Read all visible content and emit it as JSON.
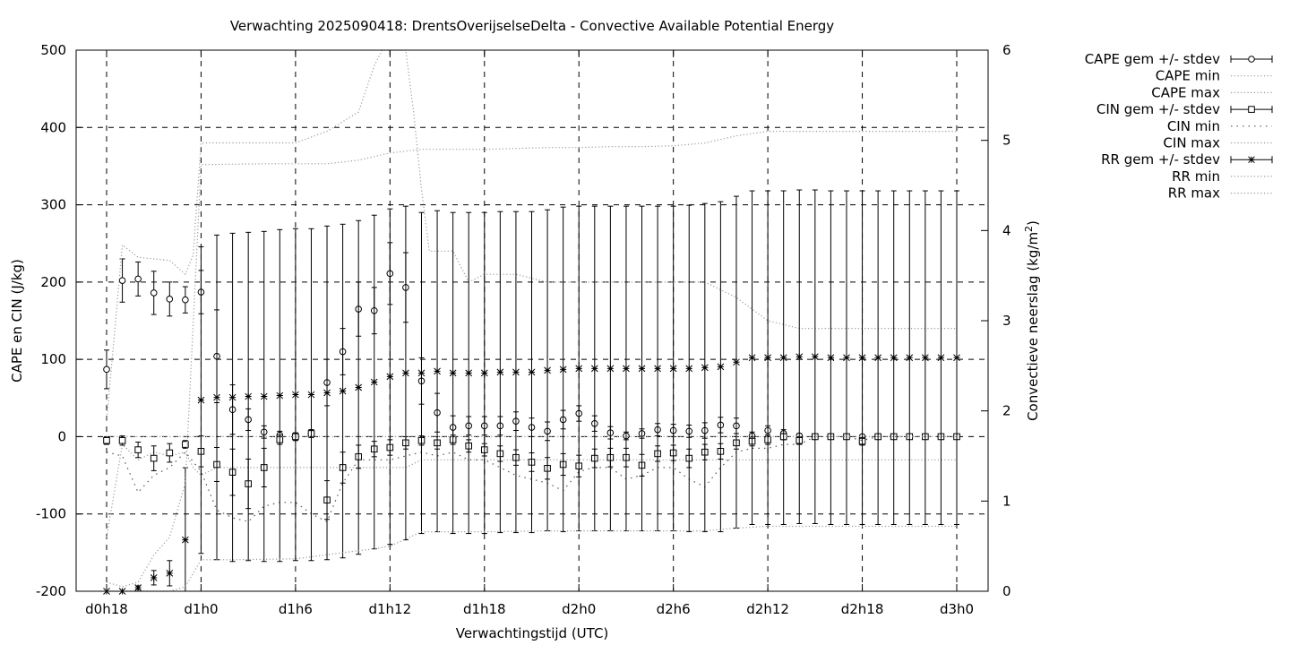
{
  "chart_data": {
    "type": "line",
    "title": "Verwachting 2025090418: DrentsOverijselseDelta - Convective Available Potential Energy",
    "xlabel": "Verwachtingstijd (UTC)",
    "ylabel": "CAPE en CIN (J/kg)",
    "y2label": "Convectieve neerslag (kg/m",
    "y2label_sup": "2",
    "y2label_end": ")",
    "x_unit": "forecast hours after 2025090418",
    "xlim": [
      0,
      54
    ],
    "ylim": [
      -200,
      500
    ],
    "y2lim": [
      0,
      6
    ],
    "grid": true,
    "legend_position": "outside-right",
    "x_ticks": [
      {
        "x": 0,
        "label": "d0h18"
      },
      {
        "x": 6,
        "label": "d1h0"
      },
      {
        "x": 12,
        "label": "d1h6"
      },
      {
        "x": 18,
        "label": "d1h12"
      },
      {
        "x": 24,
        "label": "d1h18"
      },
      {
        "x": 30,
        "label": "d2h0"
      },
      {
        "x": 36,
        "label": "d2h6"
      },
      {
        "x": 42,
        "label": "d2h12"
      },
      {
        "x": 48,
        "label": "d2h18"
      },
      {
        "x": 54,
        "label": "d3h0"
      }
    ],
    "y_ticks": [
      {
        "v": 500,
        "label": "500"
      },
      {
        "v": 400,
        "label": "400"
      },
      {
        "v": 300,
        "label": "300"
      },
      {
        "v": 200,
        "label": "200"
      },
      {
        "v": 100,
        "label": "100"
      },
      {
        "v": 0,
        "label": "0"
      },
      {
        "v": -100,
        "label": "-100"
      },
      {
        "v": -200,
        "label": "-200"
      }
    ],
    "y2_ticks": [
      {
        "v": 6,
        "label": "6"
      },
      {
        "v": 5,
        "label": "5"
      },
      {
        "v": 4,
        "label": "4"
      },
      {
        "v": 3,
        "label": "3"
      },
      {
        "v": 2,
        "label": "2"
      },
      {
        "v": 1,
        "label": "1"
      },
      {
        "v": 0,
        "label": "0"
      }
    ],
    "legend": [
      {
        "label": "CAPE gem +/- stdev",
        "style": "errbar",
        "marker": "circle"
      },
      {
        "label": "CAPE min",
        "style": "dotted"
      },
      {
        "label": "CAPE max",
        "style": "dotted"
      },
      {
        "label": "CIN gem +/- stdev",
        "style": "errbar",
        "marker": "square"
      },
      {
        "label": "CIN min",
        "style": "dotted-sparse"
      },
      {
        "label": "CIN max",
        "style": "dotted"
      },
      {
        "label": "RR gem +/- stdev",
        "style": "errbar",
        "marker": "star"
      },
      {
        "label": "RR min",
        "style": "dotted"
      },
      {
        "label": "RR max",
        "style": "dotted"
      }
    ],
    "series": [
      {
        "name": "CAPE gem +/- stdev",
        "axis": "y",
        "marker": "circle",
        "x": [
          0,
          1,
          2,
          3,
          4,
          5,
          6,
          7,
          8,
          9,
          10,
          11,
          12,
          13,
          14,
          15,
          16,
          17,
          18,
          19,
          20,
          21,
          22,
          23,
          24,
          25,
          26,
          27,
          28,
          29,
          30,
          31,
          32,
          33,
          34,
          35,
          36,
          37,
          38,
          39,
          40,
          41,
          42,
          43,
          44,
          45,
          46,
          47,
          48,
          49,
          50,
          51,
          52,
          53,
          54
        ],
        "values": [
          87,
          202,
          204,
          186,
          178,
          177,
          187,
          104,
          35,
          22,
          6,
          2,
          0,
          4,
          70,
          110,
          165,
          163,
          211,
          193,
          72,
          31,
          12,
          14,
          14,
          14,
          20,
          12,
          7,
          22,
          30,
          17,
          5,
          1,
          4,
          9,
          8,
          7,
          8,
          15,
          14,
          1,
          8,
          4,
          1,
          0,
          0,
          0,
          0,
          0,
          0,
          0,
          0,
          0,
          0
        ],
        "err": [
          25,
          28,
          22,
          28,
          22,
          17,
          28,
          60,
          32,
          14,
          8,
          5,
          5,
          5,
          30,
          30,
          35,
          30,
          40,
          45,
          30,
          25,
          15,
          12,
          12,
          12,
          12,
          12,
          12,
          12,
          10,
          10,
          8,
          5,
          6,
          8,
          8,
          8,
          10,
          10,
          10,
          5,
          6,
          5,
          3,
          0,
          0,
          0,
          0,
          0,
          0,
          0,
          0,
          0,
          0
        ]
      },
      {
        "name": "CAPE max",
        "axis": "y",
        "x": [
          0,
          1,
          2,
          3,
          4,
          5,
          5.5,
          6,
          7,
          10,
          11,
          12,
          14,
          16,
          17,
          17.5,
          18,
          18.6,
          19,
          19.5,
          20,
          20.5,
          22,
          23,
          24,
          26,
          28,
          30,
          32,
          34,
          36,
          38,
          40,
          42,
          44,
          46,
          48,
          50,
          52,
          54
        ],
        "values": [
          20,
          248,
          232,
          230,
          228,
          210,
          235,
          380,
          380,
          380,
          380,
          380,
          395,
          420,
          480,
          520,
          570,
          570,
          500,
          420,
          320,
          240,
          240,
          200,
          210,
          210,
          200,
          200,
          200,
          200,
          200,
          200,
          180,
          150,
          140,
          140,
          140,
          140,
          140,
          140
        ]
      },
      {
        "name": "CAPE min",
        "axis": "y",
        "x": [
          0,
          1,
          2,
          3,
          4,
          5,
          5.5,
          6,
          7,
          10,
          11,
          12,
          14,
          16,
          17,
          18,
          19,
          20,
          22,
          24,
          26,
          28,
          30,
          32,
          34,
          36,
          38,
          40,
          42,
          44,
          46,
          48,
          50,
          52,
          54
        ],
        "values": [
          -130,
          -10,
          -30,
          -20,
          -25,
          -20,
          -40,
          -50,
          -40,
          -40,
          -40,
          -40,
          -40,
          -40,
          -40,
          -40,
          -40,
          -30,
          -30,
          -30,
          -30,
          -30,
          -30,
          -30,
          -30,
          -30,
          -30,
          -30,
          -30,
          -30,
          -30,
          -30,
          -30,
          -30,
          -30
        ]
      },
      {
        "name": "CIN gem +/- stdev",
        "axis": "y",
        "marker": "square",
        "x": [
          0,
          1,
          2,
          3,
          4,
          5,
          6,
          7,
          8,
          9,
          10,
          11,
          12,
          13,
          14,
          15,
          16,
          17,
          18,
          19,
          20,
          21,
          22,
          23,
          24,
          25,
          26,
          27,
          28,
          29,
          30,
          31,
          32,
          33,
          34,
          35,
          36,
          37,
          38,
          39,
          40,
          41,
          42,
          43,
          44,
          45,
          46,
          47,
          48,
          49,
          50,
          51,
          52,
          53,
          54
        ],
        "values": [
          -5,
          -5,
          -17,
          -28,
          -21,
          -10,
          -19,
          -36,
          -46,
          -61,
          -40,
          -4,
          0,
          4,
          -82,
          -40,
          -26,
          -16,
          -14,
          -8,
          -5,
          -8,
          -4,
          -12,
          -17,
          -22,
          -27,
          -33,
          -41,
          -36,
          -38,
          -28,
          -27,
          -27,
          -37,
          -22,
          -21,
          -28,
          -20,
          -19,
          -8,
          -6,
          -4,
          0,
          -5,
          0,
          0,
          0,
          -6,
          0,
          0,
          0,
          0,
          0,
          0
        ],
        "err": [
          5,
          6,
          10,
          16,
          12,
          5,
          20,
          22,
          30,
          32,
          25,
          6,
          4,
          5,
          25,
          20,
          15,
          10,
          10,
          8,
          6,
          8,
          6,
          8,
          8,
          10,
          10,
          12,
          14,
          14,
          14,
          12,
          12,
          12,
          14,
          10,
          10,
          12,
          10,
          10,
          8,
          6,
          6,
          4,
          5,
          2,
          2,
          2,
          5,
          0,
          0,
          0,
          0,
          0,
          0
        ]
      },
      {
        "name": "CIN min",
        "axis": "y",
        "x": [
          0,
          1,
          2,
          3,
          4,
          5,
          6,
          7,
          8,
          9,
          10,
          11,
          12,
          13,
          14,
          15,
          16,
          17,
          18,
          19,
          20,
          21,
          22,
          23,
          24,
          25,
          26,
          27,
          28,
          29,
          30,
          31,
          32,
          33,
          34,
          35,
          36,
          37,
          38,
          39,
          40,
          41,
          42,
          43,
          44,
          45,
          46,
          47,
          48,
          49,
          50,
          51,
          52,
          53,
          54
        ],
        "values": [
          -20,
          -25,
          -72,
          -50,
          -40,
          -20,
          -45,
          -95,
          -105,
          -110,
          -90,
          -85,
          -85,
          -100,
          -110,
          -60,
          -30,
          -30,
          -30,
          -25,
          -20,
          -25,
          -20,
          -30,
          -30,
          -40,
          -50,
          -55,
          -60,
          -70,
          -45,
          -40,
          -40,
          -55,
          -50,
          -40,
          -40,
          -55,
          -65,
          -40,
          -20,
          -15,
          -15,
          -10,
          -10,
          0,
          0,
          0,
          -5,
          0,
          0,
          0,
          0,
          0,
          0
        ]
      },
      {
        "name": "CIN max",
        "axis": "y",
        "x": [
          0,
          2,
          4,
          6,
          8,
          10,
          12,
          14,
          16,
          18,
          20,
          22,
          24,
          26,
          28,
          30,
          32,
          34,
          36,
          38,
          40,
          42,
          44,
          46,
          48,
          50,
          52,
          54
        ],
        "values": [
          0,
          0,
          0,
          0,
          0,
          0,
          0,
          0,
          0,
          0,
          0,
          0,
          0,
          0,
          0,
          0,
          0,
          0,
          0,
          0,
          0,
          0,
          0,
          0,
          0,
          0,
          0,
          0
        ]
      },
      {
        "name": "RR gem +/- stdev",
        "axis": "y2",
        "marker": "star",
        "x": [
          0,
          1,
          2,
          3,
          4,
          5,
          6,
          7,
          8,
          9,
          10,
          11,
          12,
          13,
          14,
          15,
          16,
          17,
          18,
          19,
          20,
          21,
          22,
          23,
          24,
          25,
          26,
          27,
          28,
          29,
          30,
          31,
          32,
          33,
          34,
          35,
          36,
          37,
          38,
          39,
          40,
          41,
          42,
          43,
          44,
          45,
          46,
          47,
          48,
          49,
          50,
          51,
          52,
          53,
          54
        ],
        "values": [
          0.0,
          0.0,
          0.04,
          0.15,
          0.2,
          0.57,
          2.12,
          2.15,
          2.15,
          2.16,
          2.16,
          2.17,
          2.18,
          2.18,
          2.2,
          2.22,
          2.26,
          2.32,
          2.38,
          2.42,
          2.42,
          2.44,
          2.42,
          2.42,
          2.42,
          2.43,
          2.43,
          2.43,
          2.45,
          2.46,
          2.47,
          2.47,
          2.47,
          2.47,
          2.47,
          2.47,
          2.47,
          2.47,
          2.48,
          2.49,
          2.54,
          2.59,
          2.59,
          2.59,
          2.6,
          2.6,
          2.59,
          2.59,
          2.59,
          2.59,
          2.59,
          2.59,
          2.59,
          2.59,
          2.59
        ],
        "err": [
          0,
          0,
          0.02,
          0.08,
          0.14,
          0.8,
          1.7,
          1.8,
          1.82,
          1.82,
          1.83,
          1.84,
          1.84,
          1.84,
          1.85,
          1.85,
          1.85,
          1.85,
          1.86,
          1.85,
          1.78,
          1.78,
          1.78,
          1.78,
          1.78,
          1.78,
          1.78,
          1.78,
          1.78,
          1.8,
          1.8,
          1.8,
          1.8,
          1.8,
          1.8,
          1.8,
          1.8,
          1.81,
          1.82,
          1.83,
          1.84,
          1.85,
          1.85,
          1.85,
          1.85,
          1.85,
          1.85,
          1.85,
          1.85,
          1.85,
          1.85,
          1.85,
          1.85,
          1.85,
          1.85
        ]
      },
      {
        "name": "RR max",
        "axis": "y2",
        "x": [
          0,
          1,
          2,
          3,
          4,
          5,
          6,
          10,
          14,
          16,
          17,
          18,
          19,
          20,
          22,
          24,
          26,
          28,
          30,
          32,
          34,
          36,
          38,
          40,
          42,
          44,
          46,
          48,
          50,
          52,
          54
        ],
        "values": [
          0.1,
          0.05,
          0.1,
          0.4,
          0.6,
          1.2,
          4.73,
          4.74,
          4.74,
          4.78,
          4.82,
          4.86,
          4.88,
          4.9,
          4.9,
          4.9,
          4.91,
          4.92,
          4.92,
          4.93,
          4.93,
          4.94,
          4.97,
          5.05,
          5.1,
          5.1,
          5.1,
          5.1,
          5.1,
          5.1,
          5.1
        ]
      },
      {
        "name": "RR min",
        "axis": "y2",
        "x": [
          0,
          2,
          4,
          5,
          6,
          8,
          12,
          16,
          17,
          18,
          20,
          22,
          24,
          28,
          30,
          34,
          36,
          38,
          40,
          42,
          44,
          46,
          48,
          50,
          52,
          54
        ],
        "values": [
          0,
          0,
          0,
          0.05,
          0.35,
          0.35,
          0.36,
          0.45,
          0.47,
          0.5,
          0.66,
          0.66,
          0.66,
          0.67,
          0.67,
          0.67,
          0.67,
          0.67,
          0.7,
          0.72,
          0.72,
          0.72,
          0.72,
          0.72,
          0.72,
          0.72
        ]
      }
    ]
  }
}
